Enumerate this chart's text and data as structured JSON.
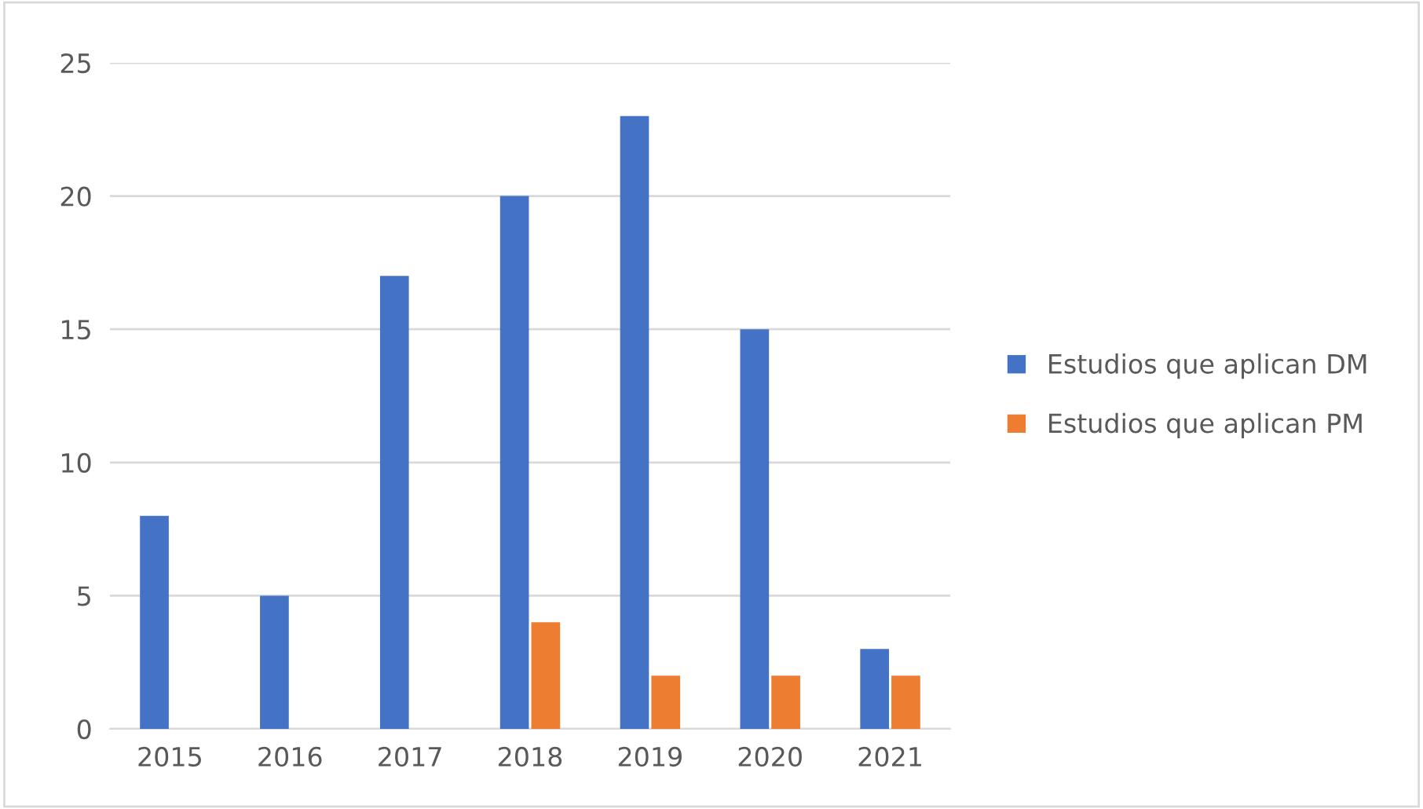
{
  "chart_data": {
    "type": "bar",
    "categories": [
      "2015",
      "2016",
      "2017",
      "2018",
      "2019",
      "2020",
      "2021"
    ],
    "series": [
      {
        "name": "Estudios que aplican DM",
        "color": "#4472c4",
        "values": [
          8,
          5,
          17,
          20,
          23,
          15,
          3
        ]
      },
      {
        "name": "Estudios que aplican PM",
        "color": "#ed7d31",
        "values": [
          0,
          0,
          0,
          4,
          2,
          2,
          2
        ]
      }
    ],
    "ylim": [
      0,
      25
    ],
    "yticks": [
      0,
      5,
      10,
      15,
      20,
      25
    ],
    "grid": "y",
    "legend": "right"
  }
}
